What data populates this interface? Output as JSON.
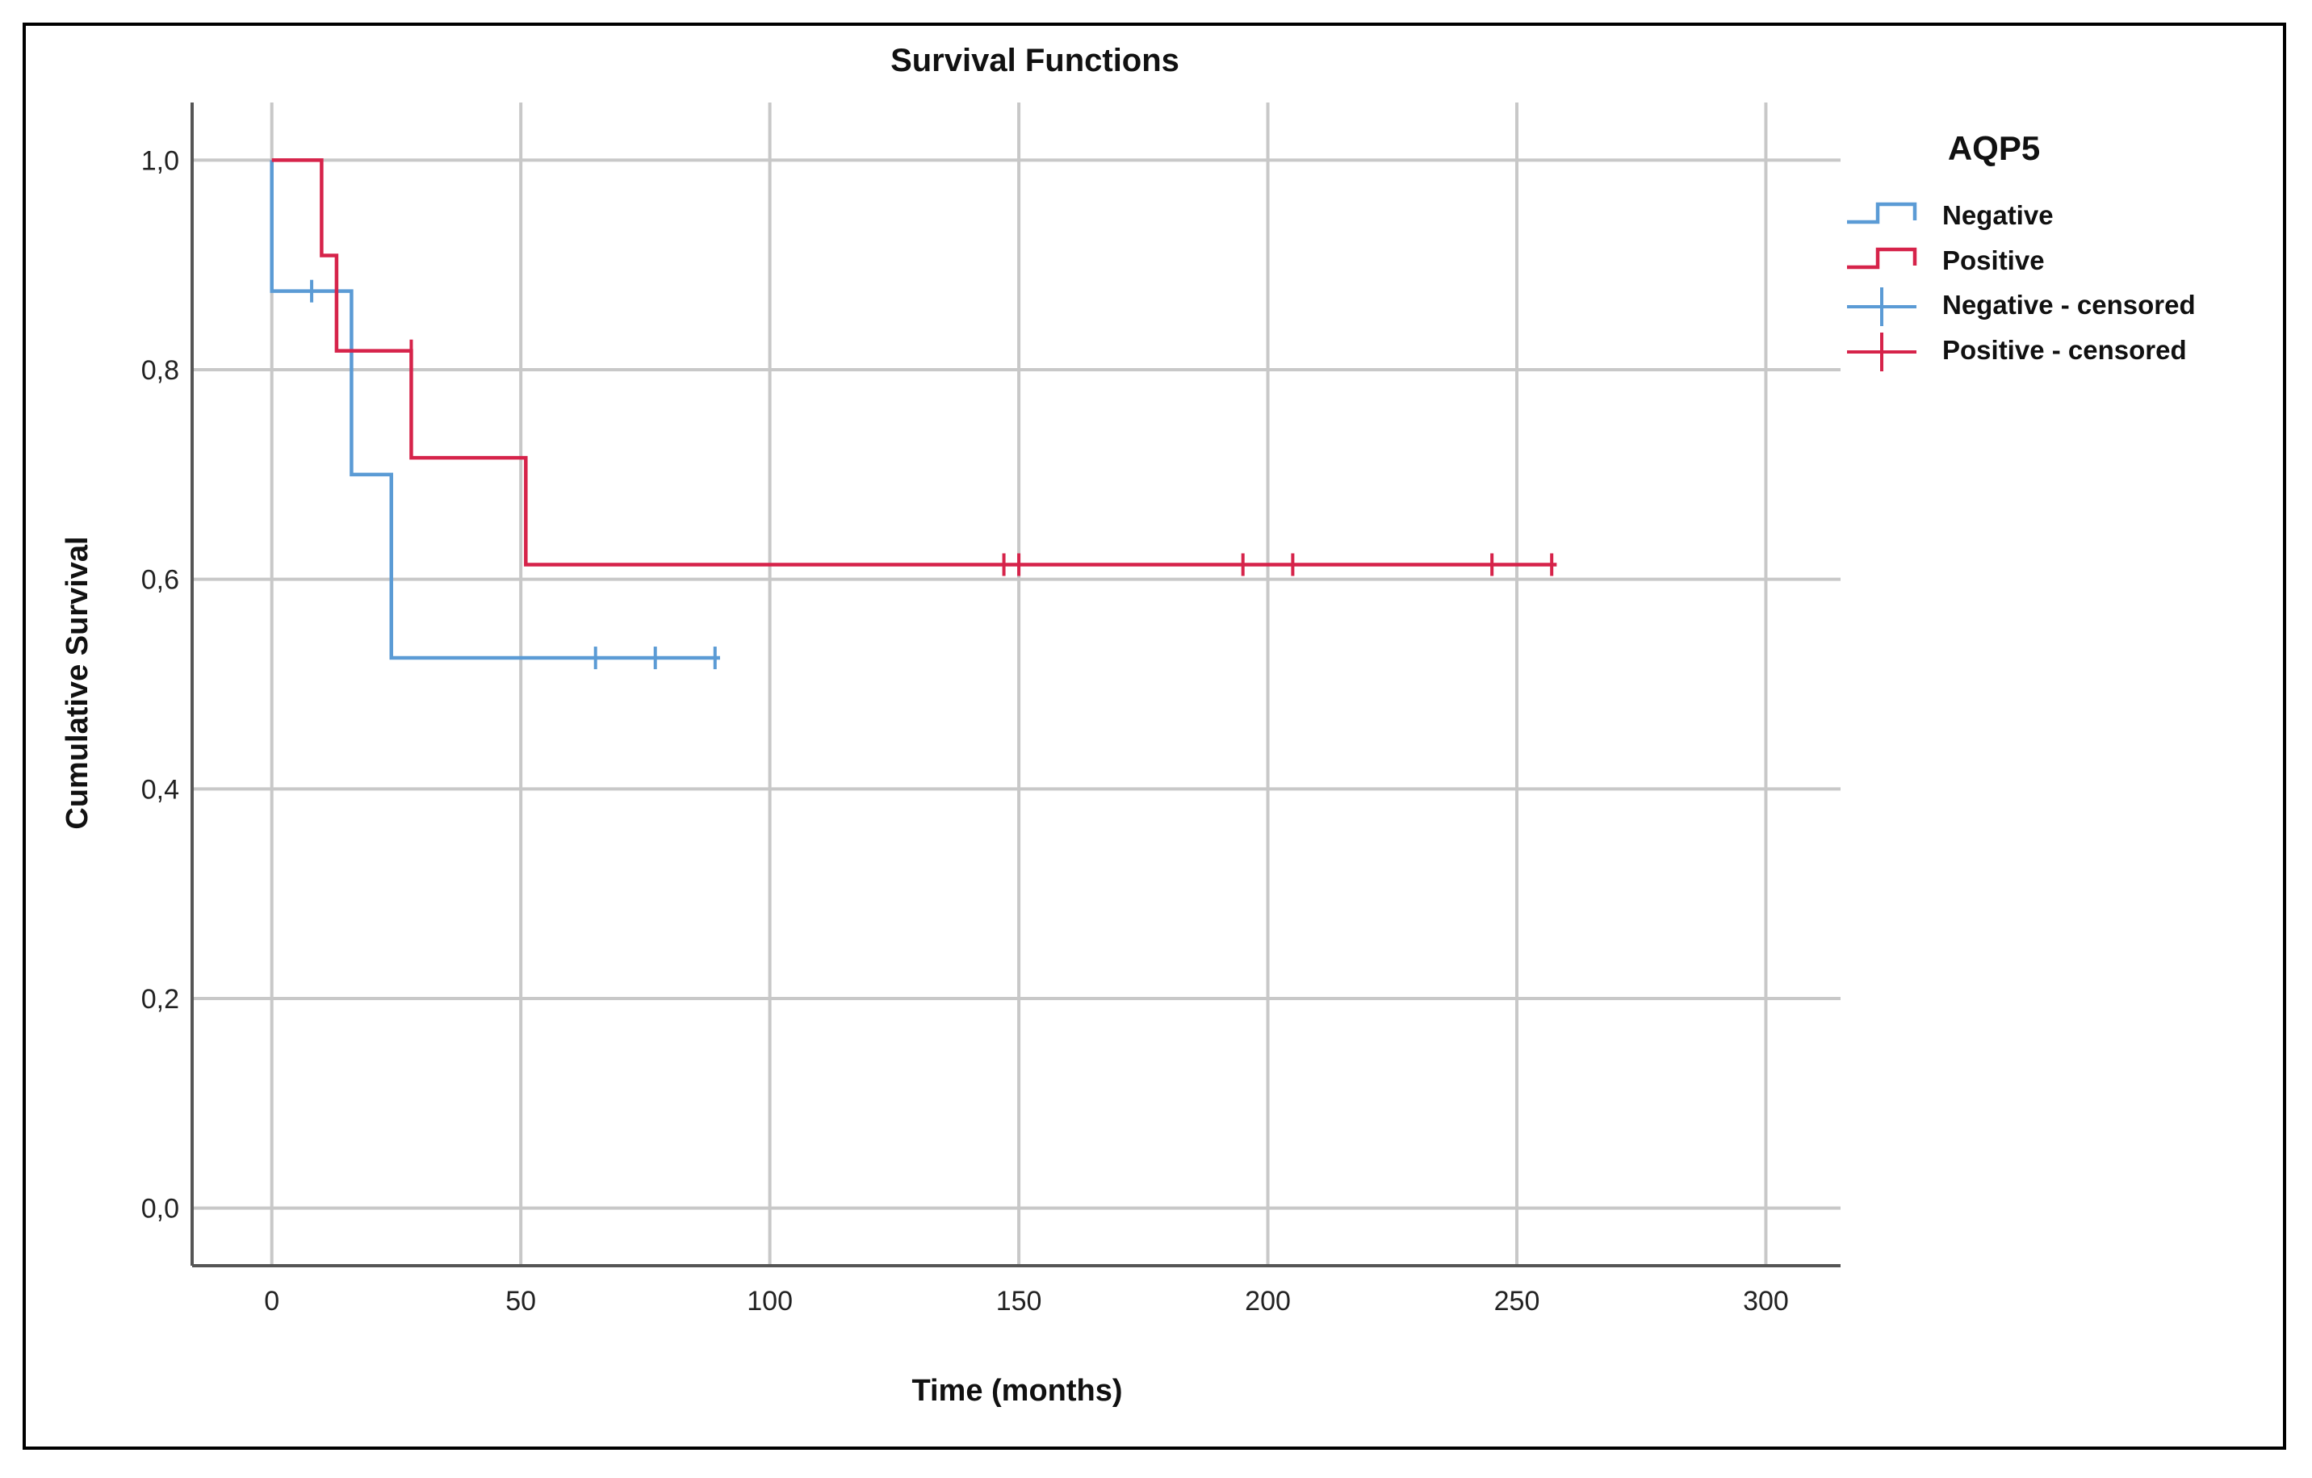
{
  "chart_data": {
    "type": "line",
    "subtype": "kaplan-meier-step",
    "title": "Survival Functions",
    "xlabel": "Time (months)",
    "ylabel": "Cumulative Survival",
    "xlim": [
      -16,
      315
    ],
    "ylim": [
      -0.055,
      1.055
    ],
    "x_ticks": [
      0,
      50,
      100,
      150,
      200,
      250,
      300
    ],
    "x_tick_labels": [
      "0",
      "50",
      "100",
      "150",
      "200",
      "250",
      "300"
    ],
    "y_ticks": [
      0,
      0.2,
      0.4,
      0.6,
      0.8,
      1.0
    ],
    "y_tick_labels": [
      "0,0",
      "0,2",
      "0,4",
      "0,6",
      "0,8",
      "1,0"
    ],
    "grid": true,
    "legend": {
      "title": "AQP5",
      "position": "right",
      "entries": [
        "Negative",
        "Positive",
        "Negative - censored",
        "Positive - censored"
      ]
    },
    "series": [
      {
        "name": "Negative",
        "color": "#5b9bd5",
        "steps": [
          [
            0,
            1.0
          ],
          [
            0,
            0.875
          ],
          [
            16,
            0.875
          ],
          [
            16,
            0.7
          ],
          [
            24,
            0.7
          ],
          [
            24,
            0.525
          ],
          [
            90,
            0.525
          ]
        ],
        "censored": [
          [
            8,
            0.875
          ],
          [
            65,
            0.525
          ],
          [
            77,
            0.525
          ],
          [
            89,
            0.525
          ]
        ]
      },
      {
        "name": "Positive",
        "color": "#d6234a",
        "steps": [
          [
            0,
            1.0
          ],
          [
            10,
            1.0
          ],
          [
            10,
            0.909
          ],
          [
            13,
            0.909
          ],
          [
            13,
            0.818
          ],
          [
            28,
            0.818
          ],
          [
            28,
            0.716
          ],
          [
            51,
            0.716
          ],
          [
            51,
            0.614
          ],
          [
            258,
            0.614
          ]
        ],
        "censored": [
          [
            28,
            0.818
          ],
          [
            147,
            0.614
          ],
          [
            150,
            0.614
          ],
          [
            195,
            0.614
          ],
          [
            205,
            0.614
          ],
          [
            245,
            0.614
          ],
          [
            257,
            0.614
          ]
        ]
      }
    ]
  }
}
